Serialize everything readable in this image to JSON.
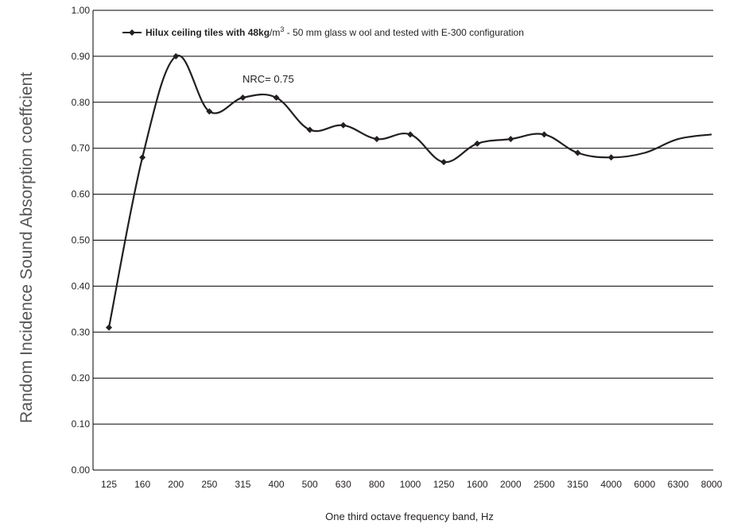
{
  "chart_data": {
    "type": "line",
    "title": "",
    "xlabel": "One third octave frequency band, Hz",
    "ylabel": "Random Incidence Sound Absorption coeffcient",
    "categories": [
      "125",
      "160",
      "200",
      "250",
      "315",
      "400",
      "500",
      "630",
      "800",
      "1000",
      "1250",
      "1600",
      "2000",
      "2500",
      "3150",
      "4000",
      "6000",
      "6300",
      "8000"
    ],
    "ylim": [
      0,
      1
    ],
    "yticks": [
      "0.00",
      "0.10",
      "0.20",
      "0.30",
      "0.40",
      "0.50",
      "0.60",
      "0.70",
      "0.80",
      "0.90",
      "1.00"
    ],
    "grid": "horizontal",
    "legend_position": "top-left",
    "series": [
      {
        "name": "Hilux ceiling tiles with 48kg/m3 - 50 mm glass wool and tested with E-300 configuration",
        "values": [
          0.31,
          0.68,
          0.9,
          0.78,
          0.81,
          0.81,
          0.74,
          0.75,
          0.72,
          0.73,
          0.67,
          0.71,
          0.72,
          0.73,
          0.69,
          0.68,
          0.69,
          0.72,
          0.73
        ],
        "markers": [
          true,
          true,
          true,
          true,
          true,
          true,
          true,
          true,
          true,
          true,
          true,
          true,
          true,
          true,
          true,
          true,
          false,
          false,
          false
        ],
        "color": "#231f20"
      }
    ],
    "legend": {
      "bold": "Hilux ceiling tiles with 48kg",
      "unit": "/m",
      "sup": "3",
      "rest": " - 50 mm glass w ool and tested with E-300 configuration"
    },
    "annotation": "NRC= 0.75"
  }
}
